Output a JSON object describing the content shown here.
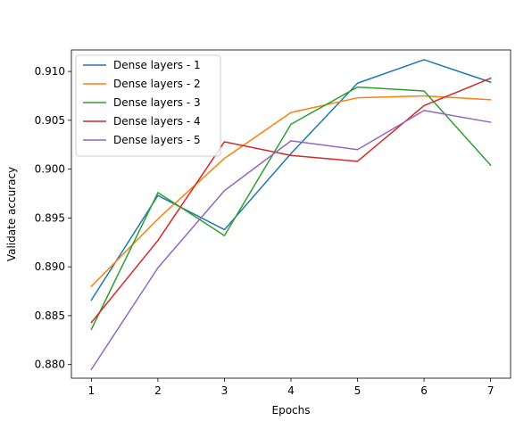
{
  "chart_data": {
    "type": "line",
    "title": "",
    "xlabel": "Epochs",
    "ylabel": "Validate accuracy",
    "x": [
      1,
      2,
      3,
      4,
      5,
      6,
      7
    ],
    "xlim": [
      0.7,
      7.3
    ],
    "ylim": [
      0.8786,
      0.9122
    ],
    "xticks": [
      1,
      2,
      3,
      4,
      5,
      6,
      7
    ],
    "yticks": [
      0.88,
      0.885,
      0.89,
      0.895,
      0.9,
      0.905,
      0.91
    ],
    "ytick_labels": [
      "0.880",
      "0.885",
      "0.890",
      "0.895",
      "0.900",
      "0.905",
      "0.910"
    ],
    "grid": false,
    "legend_position": "top-left",
    "series": [
      {
        "name": "Dense layers - 1",
        "color": "#1f77b4",
        "values": [
          0.8866,
          0.8973,
          0.8938,
          0.9016,
          0.9088,
          0.9112,
          0.9089
        ]
      },
      {
        "name": "Dense layers - 2",
        "color": "#ff7f0e",
        "values": [
          0.888,
          0.8949,
          0.9011,
          0.9058,
          0.9073,
          0.9075,
          0.9071
        ]
      },
      {
        "name": "Dense layers - 3",
        "color": "#2ca02c",
        "values": [
          0.8836,
          0.8976,
          0.8932,
          0.9046,
          0.9084,
          0.908,
          0.9004
        ]
      },
      {
        "name": "Dense layers - 4",
        "color": "#d62728",
        "values": [
          0.8843,
          0.8927,
          0.9028,
          0.9014,
          0.9008,
          0.9065,
          0.9093
        ]
      },
      {
        "name": "Dense layers - 5",
        "color": "#9467bd",
        "values": [
          0.8795,
          0.8899,
          0.8978,
          0.9029,
          0.902,
          0.906,
          0.9048
        ]
      }
    ]
  }
}
